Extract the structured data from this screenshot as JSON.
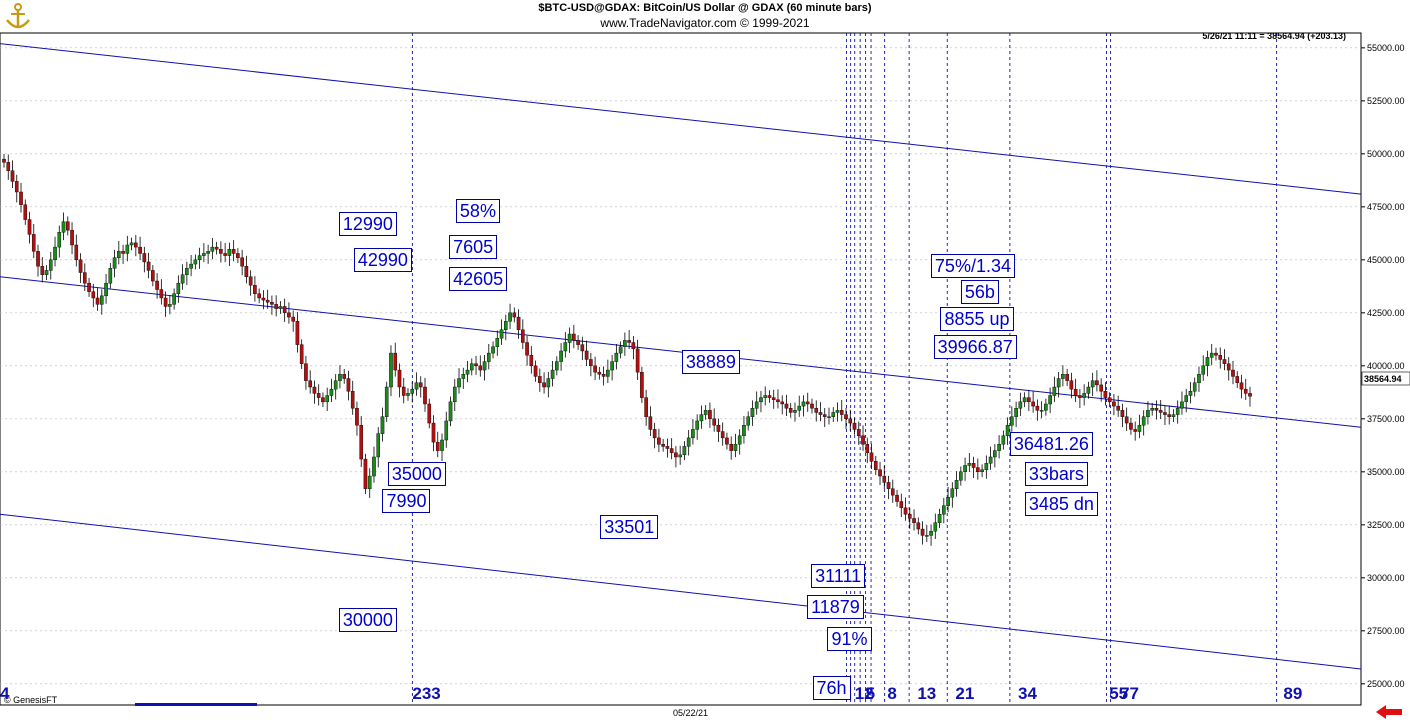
{
  "header": {
    "title": "$BTC-USD@GDAX:  BitCoin/US Dollar @ GDAX  (60 minute bars)",
    "subtitle": "www.TradeNavigator.com © 1999-2021",
    "readout": "5/26/21 11:11 = 38564.94 (+203.13)",
    "provider": "© GenesisFT",
    "last_price_label": "38564.94"
  },
  "icons": {
    "logo": "anchor-logo-icon",
    "scroll_back": "red-left-arrow-icon"
  },
  "colors": {
    "up": "#1a8a1a",
    "down": "#b01010",
    "lines": "#1010b0",
    "text": "#0000cc"
  },
  "chart_data": {
    "type": "candlestick",
    "title": "$BTC-USD@GDAX:  BitCoin/US Dollar @ GDAX  (60 minute bars)",
    "ylim": [
      24000,
      55700
    ],
    "y_ticks": [
      55000,
      52500,
      50000,
      47500,
      45000,
      42500,
      40000,
      37500,
      35000,
      32500,
      30000,
      27500,
      25000
    ],
    "y_tick_labels": [
      "55000.00",
      "52500.00",
      "50000.00",
      "47500.00",
      "45000.00",
      "42500.00",
      "40000.00",
      "37500.00",
      "35000.00",
      "32500.00",
      "30000.00",
      "27500.00",
      "25000.00"
    ],
    "x_tick_labels": [
      "05/22/21"
    ],
    "closes": [
      49600,
      49200,
      48700,
      48200,
      47600,
      46900,
      46200,
      45400,
      44700,
      44300,
      44500,
      45000,
      45600,
      46300,
      46800,
      46400,
      45700,
      45000,
      44400,
      43900,
      43500,
      43200,
      42900,
      43300,
      43900,
      44600,
      45100,
      45400,
      45300,
      45700,
      45800,
      45600,
      45300,
      44900,
      44500,
      44000,
      43600,
      43200,
      42800,
      42900,
      43400,
      43900,
      44300,
      44600,
      44800,
      45000,
      45200,
      45300,
      45400,
      45600,
      45500,
      45300,
      45200,
      45500,
      45300,
      45100,
      44700,
      44200,
      43800,
      43400,
      43200,
      43100,
      43000,
      42900,
      42700,
      42800,
      42500,
      42300,
      42100,
      41000,
      40100,
      39300,
      39000,
      38700,
      38500,
      38300,
      38600,
      38900,
      39300,
      39600,
      39400,
      38800,
      38000,
      37200,
      35600,
      34200,
      34800,
      35700,
      36800,
      37600,
      39000,
      40600,
      39800,
      39000,
      38600,
      38700,
      38900,
      39200,
      39000,
      38200,
      37300,
      36400,
      36000,
      36500,
      37400,
      38300,
      39000,
      39400,
      39600,
      39800,
      40100,
      40000,
      39800,
      40200,
      40600,
      40900,
      41300,
      41700,
      42100,
      42500,
      42300,
      41700,
      41100,
      40500,
      40000,
      39500,
      39200,
      39000,
      39400,
      39800,
      40200,
      40700,
      41100,
      41500,
      41200,
      41000,
      40700,
      40300,
      40000,
      39700,
      39600,
      39500,
      39800,
      40200,
      40600,
      40900,
      41200,
      41100,
      40800,
      39700,
      38500,
      37600,
      37000,
      36600,
      36300,
      36200,
      36100,
      35900,
      35700,
      35800,
      36200,
      36600,
      37000,
      37400,
      37700,
      37900,
      37500,
      37200,
      36900,
      36600,
      36300,
      36000,
      36300,
      36700,
      37200,
      37600,
      38000,
      38300,
      38500,
      38600,
      38500,
      38400,
      38300,
      38200,
      38000,
      37800,
      37900,
      38100,
      38300,
      38200,
      38000,
      37800,
      37700,
      37600,
      37600,
      37800,
      37900,
      37700,
      37500,
      37300,
      37000,
      36700,
      36300,
      35900,
      35500,
      35100,
      34800,
      34500,
      34200,
      33900,
      33600,
      33300,
      33000,
      32800,
      32600,
      32300,
      32000,
      32000,
      32200,
      32600,
      33000,
      33400,
      33800,
      34200,
      34600,
      35000,
      35300,
      35400,
      35200,
      35000,
      35100,
      35400,
      35700,
      36000,
      36300,
      36700,
      37200,
      37600,
      38000,
      38300,
      38500,
      38300,
      38100,
      37900,
      37900,
      38200,
      38600,
      39000,
      39400,
      39600,
      39300,
      38900,
      38600,
      38500,
      38700,
      39000,
      39300,
      39100,
      38800,
      38500,
      38300,
      38100,
      37900,
      37600,
      37300,
      37000,
      36900,
      37200,
      37600,
      37900,
      38000,
      37900,
      37800,
      37700,
      37600,
      37700,
      38000,
      38300,
      38600,
      38800,
      39200,
      39600,
      40000,
      40400,
      40600,
      40500,
      40300,
      40100,
      39800,
      39500,
      39200,
      38900,
      38700,
      38564.94
    ],
    "channel_lines": [
      {
        "x": [
          0,
          1
        ],
        "y": [
          55200,
          48100
        ]
      },
      {
        "x": [
          0,
          1
        ],
        "y": [
          44200,
          37100
        ]
      },
      {
        "x": [
          0,
          1
        ],
        "y": [
          33000,
          25700
        ]
      }
    ],
    "vertical_lines_x": [
      0.303,
      0.622,
      0.625,
      0.628,
      0.632,
      0.636,
      0.64,
      0.65,
      0.668,
      0.696,
      0.742,
      0.813,
      0.816,
      0.938
    ],
    "bottom_counts": [
      {
        "label": "4",
        "x": 0.0
      },
      {
        "label": "233",
        "x": 0.303
      },
      {
        "label": "12",
        "x": 0.628
      },
      {
        "label": "5",
        "x": 0.636
      },
      {
        "label": "8",
        "x": 0.652
      },
      {
        "label": "13",
        "x": 0.674
      },
      {
        "label": "21",
        "x": 0.702
      },
      {
        "label": "34",
        "x": 0.748
      },
      {
        "label": "55",
        "x": 0.815
      },
      {
        "label": "77",
        "x": 0.823
      },
      {
        "label": "89",
        "x": 0.943
      }
    ],
    "annotations": [
      {
        "text": "12990",
        "x": 0.249,
        "y": 46700
      },
      {
        "text": "42990",
        "x": 0.26,
        "y": 45000
      },
      {
        "text": "58%",
        "x": 0.335,
        "y": 47300
      },
      {
        "text": "7605",
        "x": 0.33,
        "y": 45600
      },
      {
        "text": "42605",
        "x": 0.33,
        "y": 44100
      },
      {
        "text": "35000",
        "x": 0.285,
        "y": 34900
      },
      {
        "text": "7990",
        "x": 0.281,
        "y": 33600
      },
      {
        "text": "30000",
        "x": 0.249,
        "y": 28000
      },
      {
        "text": "33501",
        "x": 0.441,
        "y": 32400
      },
      {
        "text": "38889",
        "x": 0.501,
        "y": 40200
      },
      {
        "text": "31111",
        "x": 0.596,
        "y": 30100
      },
      {
        "text": "11879",
        "x": 0.593,
        "y": 28600
      },
      {
        "text": "91%",
        "x": 0.608,
        "y": 27100
      },
      {
        "text": "76h",
        "x": 0.597,
        "y": 24800
      },
      {
        "text": "75%/1.34",
        "x": 0.684,
        "y": 44700
      },
      {
        "text": "56b",
        "x": 0.706,
        "y": 43500
      },
      {
        "text": "8855 up",
        "x": 0.691,
        "y": 42200
      },
      {
        "text": "39966.87",
        "x": 0.686,
        "y": 40900
      },
      {
        "text": "36481.26",
        "x": 0.742,
        "y": 36300
      },
      {
        "text": "33bars",
        "x": 0.753,
        "y": 34900
      },
      {
        "text": "3485 dn",
        "x": 0.753,
        "y": 33500
      }
    ]
  }
}
